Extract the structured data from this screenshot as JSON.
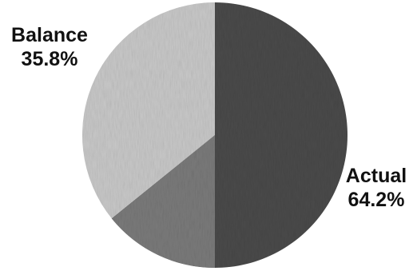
{
  "chart_data": {
    "type": "pie",
    "title": "",
    "slices": [
      {
        "name": "Actual",
        "label": "Actual",
        "value_label": "64.2%",
        "value": 64.2,
        "color": "#4a4a4a"
      },
      {
        "name": "Balance",
        "label": "Balance",
        "value_label": "35.8%",
        "value": 35.8,
        "color": "#c8c8c8"
      }
    ],
    "start_angle_deg": 0,
    "direction": "clockwise",
    "legend": "none"
  }
}
